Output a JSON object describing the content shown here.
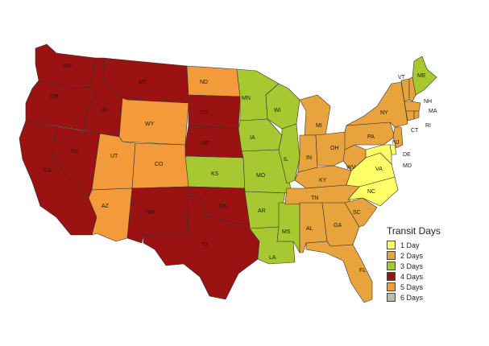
{
  "legend": {
    "title": "Transit Days",
    "items": [
      {
        "key": "d1",
        "label": "1 Day",
        "color": "#ffff66"
      },
      {
        "key": "d2",
        "label": "2 Days",
        "color": "#e8a33d"
      },
      {
        "key": "d3",
        "label": "3 Days",
        "color": "#a8c832"
      },
      {
        "key": "d4",
        "label": "4 Days",
        "color": "#9b1212"
      },
      {
        "key": "d5",
        "label": "5 Days",
        "color": "#f39a3a"
      },
      {
        "key": "d6",
        "label": "6 Days",
        "color": "#c0b8a8"
      }
    ]
  },
  "states": [
    {
      "abbr": "WA",
      "days": 4
    },
    {
      "abbr": "OR",
      "days": 4
    },
    {
      "abbr": "CA",
      "days": 4
    },
    {
      "abbr": "NV",
      "days": 4
    },
    {
      "abbr": "ID",
      "days": 4
    },
    {
      "abbr": "MT",
      "days": 4
    },
    {
      "abbr": "WY",
      "days": 5
    },
    {
      "abbr": "UT",
      "days": 5
    },
    {
      "abbr": "AZ",
      "days": 5
    },
    {
      "abbr": "CO",
      "days": 5
    },
    {
      "abbr": "NM",
      "days": 4
    },
    {
      "abbr": "ND",
      "days": 5
    },
    {
      "abbr": "SD",
      "days": 4
    },
    {
      "abbr": "NE",
      "days": 4
    },
    {
      "abbr": "KS",
      "days": 3
    },
    {
      "abbr": "OK",
      "days": 4
    },
    {
      "abbr": "TX",
      "days": 4
    },
    {
      "abbr": "MN",
      "days": 3
    },
    {
      "abbr": "IA",
      "days": 3
    },
    {
      "abbr": "MO",
      "days": 3
    },
    {
      "abbr": "AR",
      "days": 3
    },
    {
      "abbr": "LA",
      "days": 3
    },
    {
      "abbr": "WI",
      "days": 3
    },
    {
      "abbr": "IL",
      "days": 3
    },
    {
      "abbr": "MS",
      "days": 3
    },
    {
      "abbr": "MI",
      "days": 2
    },
    {
      "abbr": "IN",
      "days": 2
    },
    {
      "abbr": "KY",
      "days": 2
    },
    {
      "abbr": "TN",
      "days": 2
    },
    {
      "abbr": "AL",
      "days": 2
    },
    {
      "abbr": "OH",
      "days": 2
    },
    {
      "abbr": "GA",
      "days": 2
    },
    {
      "abbr": "FL",
      "days": 2
    },
    {
      "abbr": "SC",
      "days": 2
    },
    {
      "abbr": "NC",
      "days": 1
    },
    {
      "abbr": "VA",
      "days": 1
    },
    {
      "abbr": "WV",
      "days": 2
    },
    {
      "abbr": "PA",
      "days": 2
    },
    {
      "abbr": "NY",
      "days": 2
    },
    {
      "abbr": "VT",
      "days": 2
    },
    {
      "abbr": "ME",
      "days": 3
    },
    {
      "abbr": "NH",
      "days": 2
    },
    {
      "abbr": "MA",
      "days": 2
    },
    {
      "abbr": "CT",
      "days": 2
    },
    {
      "abbr": "RI",
      "days": 2
    },
    {
      "abbr": "NJ",
      "days": 2
    },
    {
      "abbr": "DE",
      "days": 1
    },
    {
      "abbr": "MD",
      "days": 1
    }
  ]
}
